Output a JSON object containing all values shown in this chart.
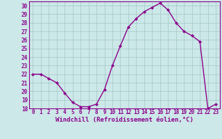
{
  "hours": [
    0,
    1,
    2,
    3,
    4,
    5,
    6,
    7,
    8,
    9,
    10,
    11,
    12,
    13,
    14,
    15,
    16,
    17,
    18,
    19,
    20,
    21,
    22,
    23
  ],
  "values": [
    22.0,
    22.0,
    21.5,
    21.0,
    19.8,
    18.7,
    18.2,
    18.2,
    18.5,
    20.2,
    23.0,
    25.3,
    27.5,
    28.5,
    29.3,
    29.8,
    30.3,
    29.5,
    28.0,
    27.0,
    26.5,
    25.8,
    18.0,
    18.5
  ],
  "line_color": "#8b008b",
  "marker": "D",
  "marker_size": 2,
  "bg_color": "#cce8e8",
  "grid_color": "#aacccc",
  "xlabel": "Windchill (Refroidissement éolien,°C)",
  "ylim": [
    18,
    30.5
  ],
  "yticks": [
    18,
    19,
    20,
    21,
    22,
    23,
    24,
    25,
    26,
    27,
    28,
    29,
    30
  ],
  "xlim": [
    -0.5,
    23.5
  ],
  "xticks": [
    0,
    1,
    2,
    3,
    4,
    5,
    6,
    7,
    8,
    9,
    10,
    11,
    12,
    13,
    14,
    15,
    16,
    17,
    18,
    19,
    20,
    21,
    22,
    23
  ],
  "tick_fontsize": 5.5,
  "xlabel_fontsize": 6.5,
  "label_color": "#8b008b",
  "axis_color": "#8b008b",
  "spine_color": "#8b008b"
}
